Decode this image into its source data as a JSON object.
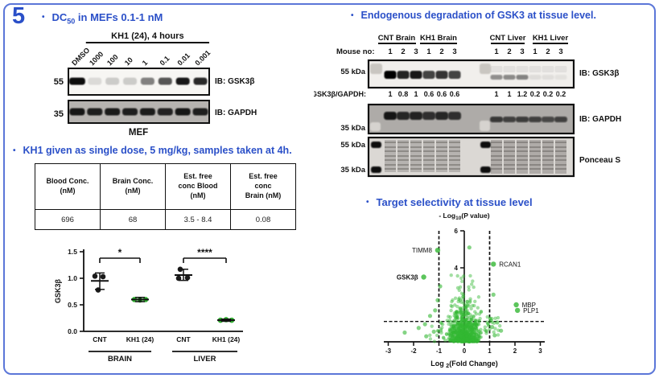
{
  "slide_number": "5",
  "colors": {
    "accent": "#2b50c8",
    "border": "#5b76d8",
    "green": "#2fae2f",
    "black": "#1a1a1a"
  },
  "left": {
    "title_dc50": {
      "bullet": "•",
      "pre": "DC",
      "sub": "50",
      "rest": " in MEFs 0.1-1 nM"
    },
    "mef_blot": {
      "treatment": "KH1 (24), 4 hours",
      "lanes": [
        "DMSO",
        "1000",
        "100",
        "10",
        "1",
        "0.1",
        "0.01",
        "0.001"
      ],
      "gsk3b": {
        "marker": "55",
        "label": "IB: GSK3β",
        "band_intensities": [
          1.0,
          0.12,
          0.18,
          0.18,
          0.5,
          0.68,
          0.95,
          0.88
        ]
      },
      "gapdh": {
        "marker": "35",
        "label": "IB: GAPDH",
        "band_intensities": [
          0.95,
          0.9,
          0.92,
          0.9,
          0.92,
          0.88,
          0.95,
          0.9
        ]
      },
      "cell_line": "MEF"
    },
    "title_dose": {
      "bullet": "•",
      "text": "KH1 given as single dose, 5 mg/kg, samples taken at 4h."
    },
    "table": {
      "headers": [
        "Blood Conc.\n(nM)",
        "Brain Conc.\n(nM)",
        "Est. free\nconc Blood\n(nM)",
        "Est. free\nconc\nBrain (nM)"
      ],
      "values": [
        "696",
        "68",
        "3.5 - 8.4",
        "0.08"
      ]
    }
  },
  "right": {
    "title_degradation": {
      "bullet": "•",
      "text": "Endogenous degradation of GSK3 at tissue level."
    },
    "tissue_blot": {
      "group_headers": [
        "CNT Brain",
        "KH1 Brain",
        "CNT Liver",
        "KH1 Liver"
      ],
      "mouse_label": "Mouse no:",
      "mouse_numbers_brain": [
        "1",
        "2",
        "3",
        "1",
        "2",
        "3"
      ],
      "mouse_numbers_liver": [
        "1",
        "2",
        "3",
        "1",
        "2",
        "3"
      ],
      "gsk3b": {
        "marker": "55 kDa",
        "label": "IB: GSK3β",
        "brain_bands": [
          1.0,
          0.85,
          0.9,
          0.72,
          0.78,
          0.72
        ],
        "liver_bands": [
          0.4,
          0.42,
          0.45,
          0.08,
          0.07,
          0.06
        ]
      },
      "ratio": {
        "label": "GSK3β/GAPDH:",
        "brain": [
          "1",
          "0.8",
          "1",
          "0.6",
          "0.6",
          "0.6"
        ],
        "liver": [
          "1",
          "1",
          "1.2",
          "0.2",
          "0.2",
          "0.2"
        ]
      },
      "gapdh": {
        "marker": "35 kDa",
        "label": "IB: GAPDH",
        "brain_bands": [
          0.95,
          0.85,
          0.88,
          0.8,
          0.85,
          0.8
        ],
        "liver_bands": [
          0.75,
          0.7,
          0.72,
          0.7,
          0.65,
          0.7
        ]
      },
      "ponceau": {
        "marker_top": "55 kDa",
        "marker_bottom": "35 kDa",
        "label": "Ponceau S"
      }
    },
    "title_selectivity": {
      "bullet": "•",
      "text": "Target selectivity at tissue level"
    }
  },
  "chart_data": [
    {
      "type": "scatter",
      "name": "gsk3b-tissue-quantification",
      "ylabel": "GSK3β",
      "ylim": [
        0,
        1.5
      ],
      "yticks": [
        "0.0",
        "0.5",
        "1.0",
        "1.5"
      ],
      "groups": [
        {
          "label": "CNT",
          "tissue": "BRAIN",
          "color": "#1a1a1a",
          "points": [
            1.04,
            1.03,
            0.78
          ],
          "mean": 0.95,
          "sd_low": 0.79,
          "sd_high": 1.1
        },
        {
          "label": "KH1 (24)",
          "tissue": "BRAIN",
          "color": "#2fae2f",
          "points": [
            0.6,
            0.59,
            0.6
          ],
          "mean": 0.6,
          "sd_low": 0.56,
          "sd_high": 0.64
        },
        {
          "label": "CNT",
          "tissue": "LIVER",
          "color": "#1a1a1a",
          "points": [
            1.17,
            1.0,
            1.01
          ],
          "mean": 1.06,
          "sd_low": 0.96,
          "sd_high": 1.17
        },
        {
          "label": "KH1 (24)",
          "tissue": "LIVER",
          "color": "#2fae2f",
          "points": [
            0.21,
            0.22,
            0.21
          ],
          "mean": 0.21,
          "sd_low": 0.19,
          "sd_high": 0.23
        }
      ],
      "jitter": [
        [
          -6,
          4,
          -2
        ],
        [
          -7,
          0,
          7
        ],
        [
          -4,
          -6,
          5
        ],
        [
          -7,
          0,
          7
        ]
      ],
      "significance": [
        {
          "groups": [
            0,
            1
          ],
          "label": "*"
        },
        {
          "groups": [
            2,
            3
          ],
          "label": "****"
        }
      ],
      "tissues": [
        {
          "label": "BRAIN",
          "span": [
            0,
            1
          ]
        },
        {
          "label": "LIVER",
          "span": [
            2,
            3
          ]
        }
      ]
    },
    {
      "type": "scatter",
      "subtype": "volcano",
      "name": "target-selectivity-volcano",
      "ylabel": {
        "pre": "- Log",
        "sub": "10",
        "rest": "(P value)"
      },
      "xlabel": {
        "pre": "Log ",
        "sub": "2",
        "rest": "(Fold Change)"
      },
      "xlim": [
        -3,
        3
      ],
      "xticks": [
        -3,
        -2,
        -1,
        0,
        1,
        2,
        3
      ],
      "ylim": [
        0,
        6
      ],
      "yticks": [
        4,
        6
      ],
      "fold_change_thresholds": [
        -1,
        1
      ],
      "pvalue_threshold": 1.1,
      "labeled_points": [
        {
          "name": "TIMM8",
          "x": -1.05,
          "y": 4.95,
          "side": "left",
          "bold": false
        },
        {
          "name": "GSK3β",
          "x": -1.6,
          "y": 3.5,
          "side": "left",
          "bold": true
        },
        {
          "name": "RCAN1",
          "x": 1.15,
          "y": 4.2,
          "side": "right",
          "bold": false
        },
        {
          "name": "MBP",
          "x": 2.05,
          "y": 2.0,
          "side": "right",
          "bold": false
        },
        {
          "name": "PLP1",
          "x": 2.1,
          "y": 1.7,
          "side": "right",
          "bold": false
        }
      ],
      "unlabeled_outliers": [
        [
          0.2,
          5.1
        ],
        [
          -2.35,
          0.5
        ],
        [
          -1.8,
          0.75
        ],
        [
          -1.55,
          0.95
        ],
        [
          -1.35,
          1.4
        ],
        [
          -1.2,
          0.55
        ],
        [
          -1.05,
          2.25
        ],
        [
          -0.95,
          3.0
        ],
        [
          1.15,
          2.55
        ],
        [
          1.3,
          1.05
        ],
        [
          1.45,
          0.6
        ],
        [
          1.2,
          0.35
        ],
        [
          -1.5,
          0.3
        ],
        [
          1.05,
          1.15
        ],
        [
          -1.15,
          1.7
        ],
        [
          1.1,
          0.8
        ]
      ],
      "cloud": {
        "n": 680,
        "seed": 7,
        "x_sd": 0.34,
        "y_scale": 0.75,
        "y_max": 3.6,
        "point_color": "#33b733"
      }
    }
  ]
}
